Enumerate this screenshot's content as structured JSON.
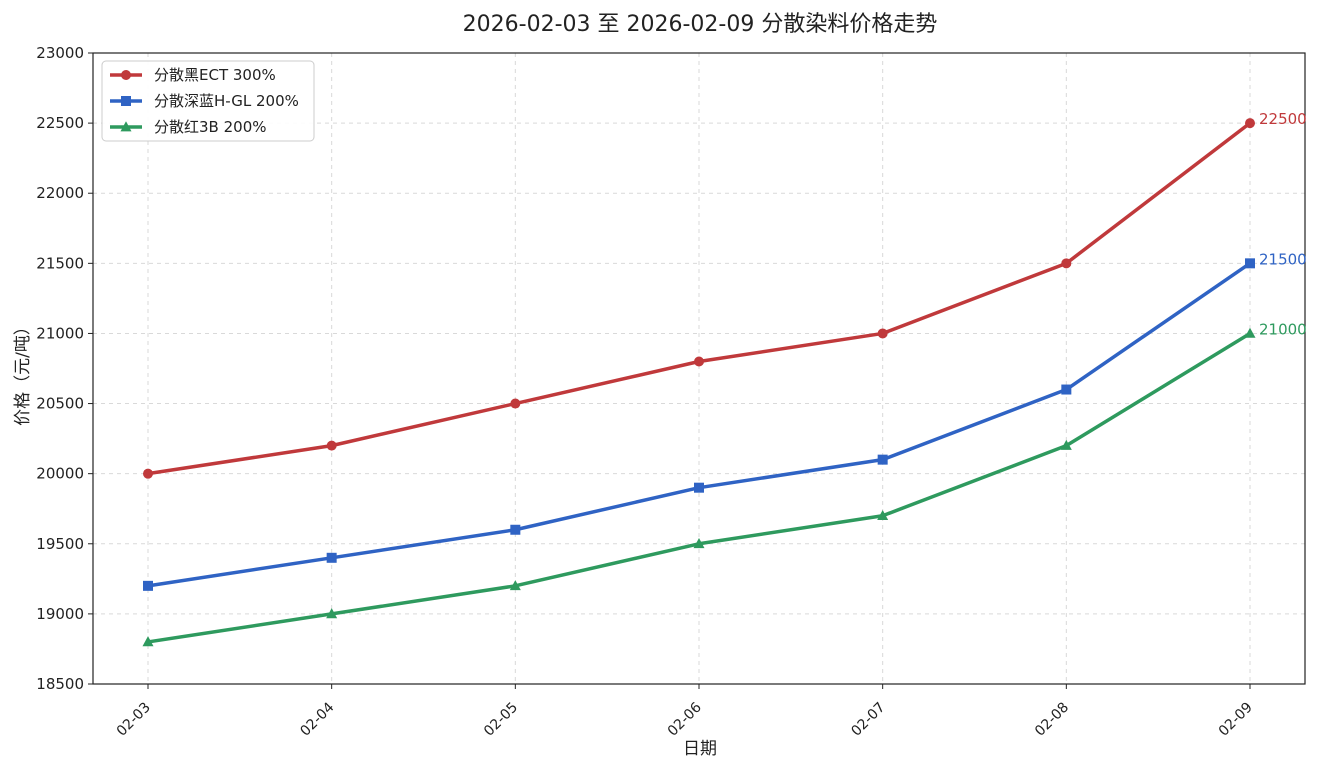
{
  "chart_data": {
    "type": "line",
    "title": "2026-02-03 至 2026-02-09 分散染料价格走势",
    "xlabel": "日期",
    "ylabel": "价格（元/吨）",
    "ylim": [
      18500,
      23000
    ],
    "yticks": [
      18500,
      19000,
      19500,
      20000,
      20500,
      21000,
      21500,
      22000,
      22500,
      23000
    ],
    "grid": true,
    "legend_position": "top-left",
    "categories": [
      "02-03",
      "02-04",
      "02-05",
      "02-06",
      "02-07",
      "02-08",
      "02-09"
    ],
    "series": [
      {
        "name": "分散黑ECT 300%",
        "color": "#c0393b",
        "marker": "circle",
        "values": [
          20000,
          20200,
          20500,
          20800,
          21000,
          21500,
          22500
        ],
        "end_label": "22500"
      },
      {
        "name": "分散深蓝H-GL 200%",
        "color": "#2f63c4",
        "marker": "square",
        "values": [
          19200,
          19400,
          19600,
          19900,
          20100,
          20600,
          21500
        ],
        "end_label": "21500"
      },
      {
        "name": "分散红3B 200%",
        "color": "#2e9a5e",
        "marker": "triangle",
        "values": [
          18800,
          19000,
          19200,
          19500,
          19700,
          20200,
          21000
        ],
        "end_label": "21000"
      }
    ]
  }
}
